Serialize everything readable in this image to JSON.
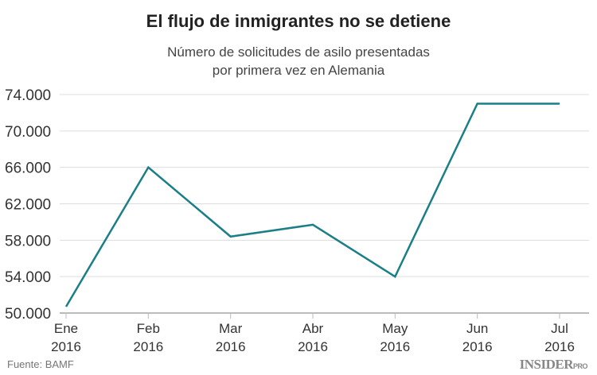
{
  "chart_data": {
    "type": "line",
    "title": "El flujo de inmigrantes no se detiene",
    "subtitle": [
      "Número de solicitudes de asilo presentadas",
      "por primera vez en Alemania"
    ],
    "categories": [
      [
        "Ene",
        "2016"
      ],
      [
        "Feb",
        "2016"
      ],
      [
        "Mar",
        "2016"
      ],
      [
        "Abr",
        "2016"
      ],
      [
        "May",
        "2016"
      ],
      [
        "Jun",
        "2016"
      ],
      [
        "Jul",
        "2016"
      ]
    ],
    "series": [
      {
        "values": [
          50700,
          66000,
          58400,
          59700,
          54000,
          73000,
          73000
        ],
        "color": "#1a7f86"
      }
    ],
    "yticks": [
      50000,
      54000,
      58000,
      62000,
      66000,
      70000,
      74000
    ],
    "ytick_labels": [
      "50.000",
      "54.000",
      "58.000",
      "62.000",
      "66.000",
      "70.000",
      "74.000"
    ],
    "ylim": [
      50000,
      74000
    ],
    "grid": true,
    "xlabel": "",
    "ylabel": ""
  },
  "footer": {
    "source": "Fuente: BAMF",
    "logo": "INSIDER",
    "logo_suffix": "PRO"
  }
}
